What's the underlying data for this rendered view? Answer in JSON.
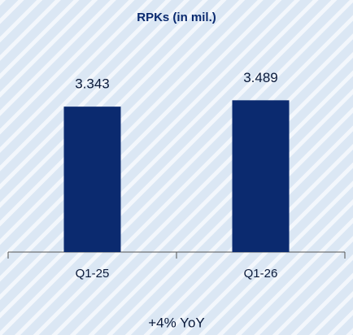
{
  "chart_data": {
    "type": "bar",
    "title": "RPKs (in mil.)",
    "categories": [
      "Q1-25",
      "Q1-26"
    ],
    "values": [
      3.343,
      3.489
    ],
    "color": "#0b2a6f",
    "ylim": [
      0,
      4
    ],
    "annotation": "+4% YoY"
  }
}
